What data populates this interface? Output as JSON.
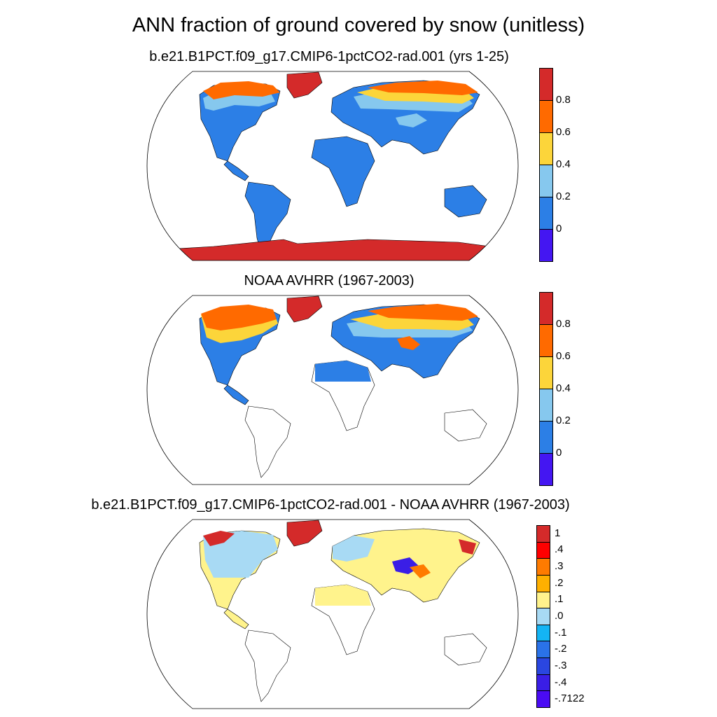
{
  "title": "ANN fraction of ground covered by snow (unitless)",
  "panels": [
    {
      "subtitle": "b.e21.B1PCT.f09_g17.CMIP6-1pctCO2-rad.001 (yrs 1-25)",
      "colorbar": {
        "colors": [
          "#d42a2a",
          "#ff6a00",
          "#fcd53a",
          "#86c8ee",
          "#2c7fe6",
          "#4416f2"
        ],
        "labels": [
          "0.8",
          "0.6",
          "0.4",
          "0.2",
          "0"
        ]
      }
    },
    {
      "subtitle": "NOAA AVHRR (1967-2003)",
      "colorbar": {
        "colors": [
          "#d42a2a",
          "#ff6a00",
          "#fcd53a",
          "#86c8ee",
          "#2c7fe6",
          "#4416f2"
        ],
        "labels": [
          "0.8",
          "0.6",
          "0.4",
          "0.2",
          "0"
        ]
      }
    },
    {
      "subtitle": "b.e21.B1PCT.f09_g17.CMIP6-1pctCO2-rad.001 - NOAA AVHRR (1967-2003)",
      "colorbar": {
        "colors": [
          "#d42a2a",
          "#fe0000",
          "#ff7b00",
          "#ffb000",
          "#fff38c",
          "#a8daf4",
          "#14b4f4",
          "#2a72e8",
          "#2a46e0",
          "#3a1ee6",
          "#4a0bf4"
        ],
        "labels": [
          "1",
          ".4",
          ".3",
          ".2",
          ".1",
          ".0",
          "-.1",
          "-.2",
          "-.3",
          "-.4",
          "-.7122"
        ]
      }
    }
  ]
}
